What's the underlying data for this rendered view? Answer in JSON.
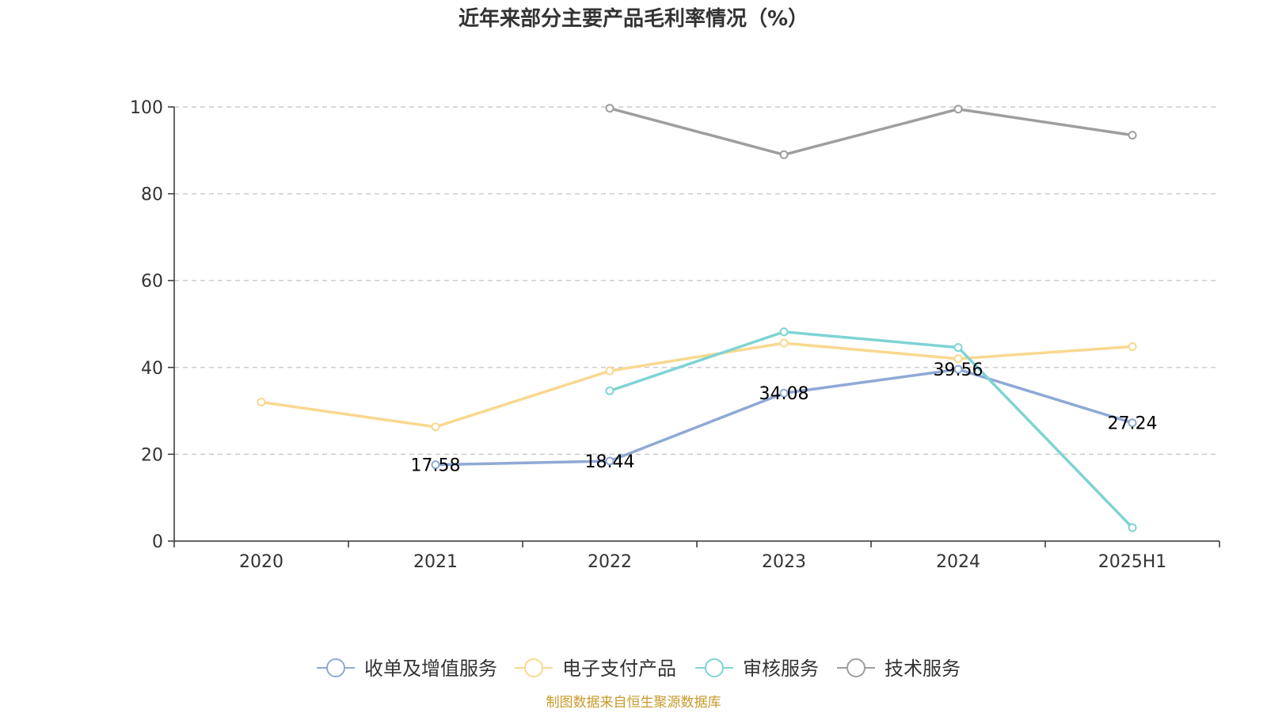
{
  "source_text": "制图数据来自恒生聚源数据库",
  "colors": {
    "axis": "#333333",
    "grid": "#cccccc",
    "source": "#c79a2a"
  },
  "chart_data": {
    "type": "line",
    "title": "近年来部分主要产品毛利率情况（%）",
    "xlabel": "",
    "ylabel": "",
    "categories": [
      "2020",
      "2021",
      "2022",
      "2023",
      "2024",
      "2025H1"
    ],
    "ylim": [
      0,
      100
    ],
    "yticks": [
      0,
      20,
      40,
      60,
      80,
      100
    ],
    "grid": true,
    "legend_position": "bottom",
    "series": [
      {
        "name": "收单及增值服务",
        "color": "#8fa9d5",
        "values": [
          null,
          17.58,
          18.44,
          34.08,
          39.56,
          27.24
        ],
        "labels": [
          null,
          "17.58",
          "18.44",
          "34.08",
          "39.56",
          "27.24"
        ]
      },
      {
        "name": "电子支付产品",
        "color": "#f9d88f",
        "values": [
          32.0,
          26.3,
          39.2,
          45.6,
          42.0,
          44.8
        ],
        "labels": []
      },
      {
        "name": "审核服务",
        "color": "#7fd3d3",
        "values": [
          null,
          null,
          34.6,
          48.2,
          44.6,
          3.1
        ],
        "labels": []
      },
      {
        "name": "技术服务",
        "color": "#9e9e9e",
        "values": [
          null,
          null,
          99.7,
          89.0,
          99.5,
          93.5
        ],
        "labels": []
      }
    ]
  }
}
